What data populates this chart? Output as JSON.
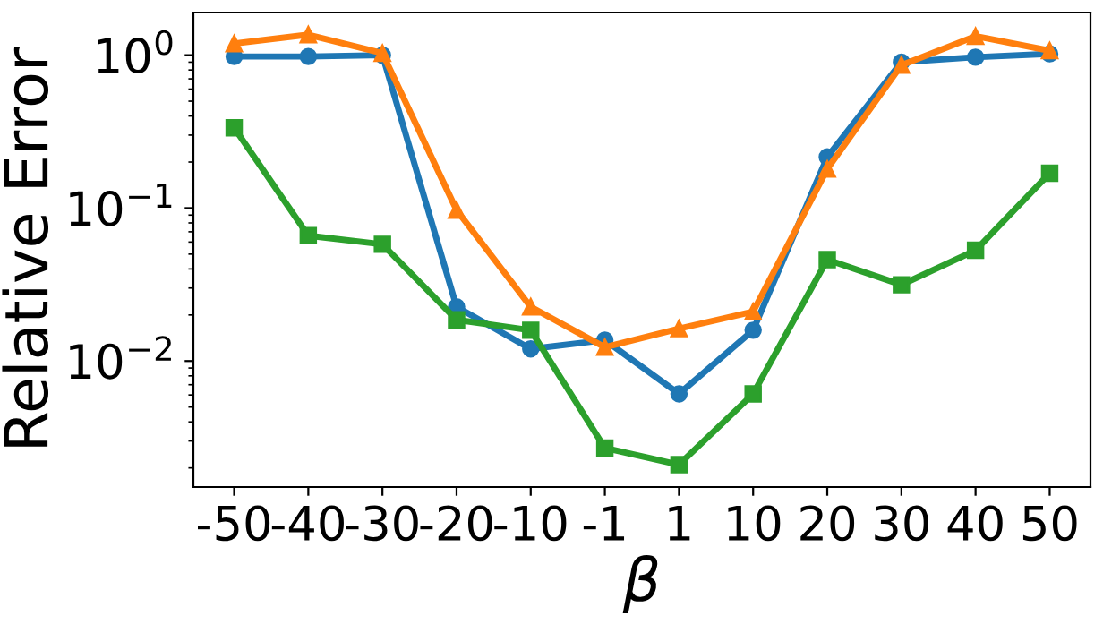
{
  "chart_data": {
    "type": "line",
    "xlabel": "β",
    "ylabel": "Relative Error",
    "log": "y",
    "ylim": [
      0.0015,
      1.9
    ],
    "yticks": [
      {
        "value": 0.01,
        "label": "10$^{−2}$"
      },
      {
        "value": 0.1,
        "label": "10$^{−1}$"
      },
      {
        "value": 1,
        "label": "10$^{0}$"
      }
    ],
    "categories": [
      "-50",
      "-40",
      "-30",
      "-20",
      "-10",
      "-1",
      "1",
      "10",
      "20",
      "30",
      "40",
      "50"
    ],
    "grid": false,
    "legend": false,
    "line_style": "solid",
    "series": [
      {
        "color": "#1f77b4",
        "marker": "circle",
        "values": [
          0.98,
          0.98,
          1.0,
          0.0226,
          0.012,
          0.0137,
          0.0061,
          0.0159,
          0.216,
          0.9,
          0.97,
          1.02
        ]
      },
      {
        "color": "#ff7f0e",
        "marker": "triangle",
        "values": [
          1.19,
          1.36,
          1.03,
          0.097,
          0.0226,
          0.0123,
          0.0163,
          0.021,
          0.18,
          0.86,
          1.33,
          1.07
        ]
      },
      {
        "color": "#2ca02c",
        "marker": "square",
        "values": [
          0.335,
          0.066,
          0.058,
          0.0186,
          0.0159,
          0.0027,
          0.0021,
          0.0061,
          0.046,
          0.0315,
          0.053,
          0.169
        ]
      }
    ]
  }
}
